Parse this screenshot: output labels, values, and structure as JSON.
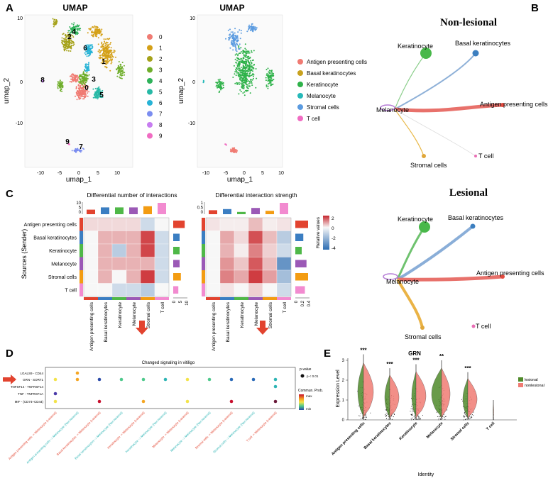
{
  "panels": {
    "a": {
      "letter": "A"
    },
    "b": {
      "letter": "B"
    },
    "c": {
      "letter": "C"
    },
    "d": {
      "letter": "D"
    },
    "e": {
      "letter": "E"
    }
  },
  "umap_left": {
    "title": "UMAP",
    "xlabel": "umap_1",
    "ylabel": "umap_2",
    "xticks": [
      "-10",
      "-5",
      "0",
      "5",
      "10"
    ],
    "yticks": [
      "10",
      "0",
      "-10"
    ],
    "cluster_labels": [
      "0",
      "1",
      "2",
      "3",
      "4",
      "5",
      "6",
      "7",
      "8",
      "9"
    ],
    "legend": [
      "0",
      "1",
      "2",
      "3",
      "4",
      "5",
      "6",
      "7",
      "8",
      "9"
    ],
    "colors": [
      "#f07b73",
      "#d4a017",
      "#a5a21a",
      "#6fae2b",
      "#2fb25a",
      "#27b9a6",
      "#27b3d6",
      "#7b8df0",
      "#c77df0",
      "#f06cc2"
    ]
  },
  "umap_right": {
    "title": "UMAP",
    "xlabel": "umap_1",
    "ylabel": "umap_2",
    "xticks": [
      "-10",
      "-5",
      "0",
      "5",
      "10"
    ],
    "yticks": [
      "10",
      "0",
      "-10"
    ],
    "legend": [
      "Antigen presenting cells",
      "Basal keratinocytes",
      "Keratinocyte",
      "Melanocyte",
      "Stromal cells",
      "T cell"
    ],
    "colors": [
      "#f07b73",
      "#c9a21f",
      "#2fb24a",
      "#27b9b9",
      "#5b9be0",
      "#f06cc2"
    ]
  },
  "network_nonlesional": {
    "title": "Non-lesional",
    "nodes": [
      "Keratinocyte",
      "Basal keratinocytes",
      "Melanocyte",
      "Antigen presenting cells",
      "Stromal cells",
      "T cell"
    ]
  },
  "network_lesional": {
    "title": "Lesional",
    "nodes": [
      "Keratinocyte",
      "Basal keratinocytes",
      "Melanocyte",
      "Antigen presenting cells",
      "Stromal cells",
      "T cell"
    ]
  },
  "heatmap": {
    "title_left": "Differential number of interactions",
    "title_right": "Differential interaction strength",
    "ylabel": "Sources (Sender)",
    "rows": [
      "Antigen presenting cells",
      "Basal keratinocytes",
      "Keratinocyte",
      "Melanocyte",
      "Stromal cells",
      "T cell"
    ],
    "cols": [
      "Antigen presenting cells",
      "Basal keratinocytes",
      "Keratinocyte",
      "Melanocyte",
      "Stromal cells",
      "T cell"
    ],
    "left_top_ticks": [
      "10",
      "5",
      "0"
    ],
    "right_top_ticks": [
      "1",
      "0.5",
      "0"
    ],
    "left_side_ticks": [
      "0",
      "5",
      "10"
    ],
    "right_side_ticks": [
      "0",
      "0.2",
      "0.4"
    ],
    "legend_title": "Relative values",
    "legend_ticks": [
      "2",
      "0",
      "-2",
      "-4"
    ]
  },
  "dotplot": {
    "title": "Changed signaling in vitiligo",
    "rows": [
      "LGALS9 - CD44",
      "GRN - SORT1",
      "TNFSF14 - TNFRSF14",
      "TNF - TNFRSF1A",
      "MIF - (CD74+CD44)"
    ],
    "cols": [
      "Antigen presenting cells -> Melanocyte (Lesional)",
      "Antigen presenting cells -> Melanocyte (Non-lesional)",
      "Basal keratinocytes -> Melanocyte (Lesional)",
      "Basal keratinocytes -> Melanocyte (Non-lesional)",
      "Keratinocyte -> Melanocyte (Lesional)",
      "Keratinocyte -> Melanocyte (Non-lesional)",
      "Melanocyte -> Melanocyte (Lesional)",
      "Melanocyte -> Melanocyte (Non-lesional)",
      "Stromal cells -> Melanocyte (Lesional)",
      "Stromal cells -> Melanocyte (Non-lesional)",
      "T cell -> Melanocyte (Lesional)"
    ],
    "legend_pval_title": "p-value",
    "legend_pval_item": "p < 0.01",
    "legend_prob_title": "Commun. Prob.",
    "legend_prob_max": "max",
    "legend_prob_min": "min"
  },
  "violin": {
    "title": "GRN",
    "ylabel": "Expression Level",
    "xlabel": "Identity",
    "yticks": [
      "3",
      "2",
      "1",
      "0"
    ],
    "categories": [
      "Antigen presenting cells",
      "Basal keratinocytes",
      "Keratinocyte",
      "Melanocyte",
      "Stromal cells",
      "T cell"
    ],
    "significance": [
      "***",
      "***",
      "***",
      "**",
      "***",
      ""
    ],
    "legend": [
      "lesional",
      "nonlesional"
    ],
    "colors": [
      "#4f8a2a",
      "#f07b73"
    ]
  }
}
